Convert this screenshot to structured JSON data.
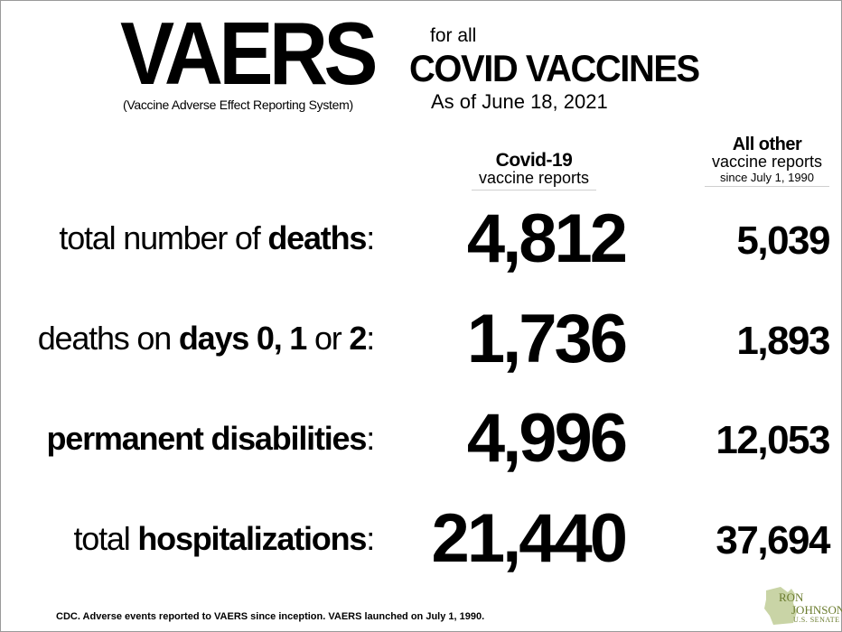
{
  "header": {
    "logo_text": "VAERS",
    "logo_subtitle": "(Vaccine Adverse Effect Reporting System)",
    "for_all": "for all",
    "headline": "COVID VACCINES",
    "as_of": "As of June 18, 2021"
  },
  "columns": {
    "covid": {
      "line1": "Covid-19",
      "line2": "vaccine reports"
    },
    "other": {
      "line1": "All other",
      "line2": "vaccine reports",
      "line3": "since July 1, 1990"
    }
  },
  "rows": [
    {
      "parts": [
        {
          "t": "total number of ",
          "b": false
        },
        {
          "t": "deaths",
          "b": true
        },
        {
          "t": ":",
          "b": false
        }
      ],
      "covid": "4,812",
      "other": "5,039"
    },
    {
      "parts": [
        {
          "t": "deaths on ",
          "b": false
        },
        {
          "t": "days 0, 1",
          "b": true
        },
        {
          "t": " or ",
          "b": false
        },
        {
          "t": "2",
          "b": true
        },
        {
          "t": ":",
          "b": false
        }
      ],
      "covid": "1,736",
      "other": "1,893"
    },
    {
      "parts": [
        {
          "t": "permanent disabilities",
          "b": true
        },
        {
          "t": ":",
          "b": false
        }
      ],
      "covid": "4,996",
      "other": "12,053"
    },
    {
      "parts": [
        {
          "t": "total ",
          "b": false
        },
        {
          "t": "hospitalizations",
          "b": true
        },
        {
          "t": ":",
          "b": false
        }
      ],
      "covid": "21,440",
      "other": "37,694"
    }
  ],
  "footnote": "CDC. Adverse events reported to VAERS since inception. VAERS launched on July 1, 1990.",
  "badge": {
    "line1": "RON",
    "line2": "JOHNSON",
    "line3": "U.S. SENATE",
    "color": "#6b7c2e",
    "shape_color": "#c9d4a6"
  }
}
